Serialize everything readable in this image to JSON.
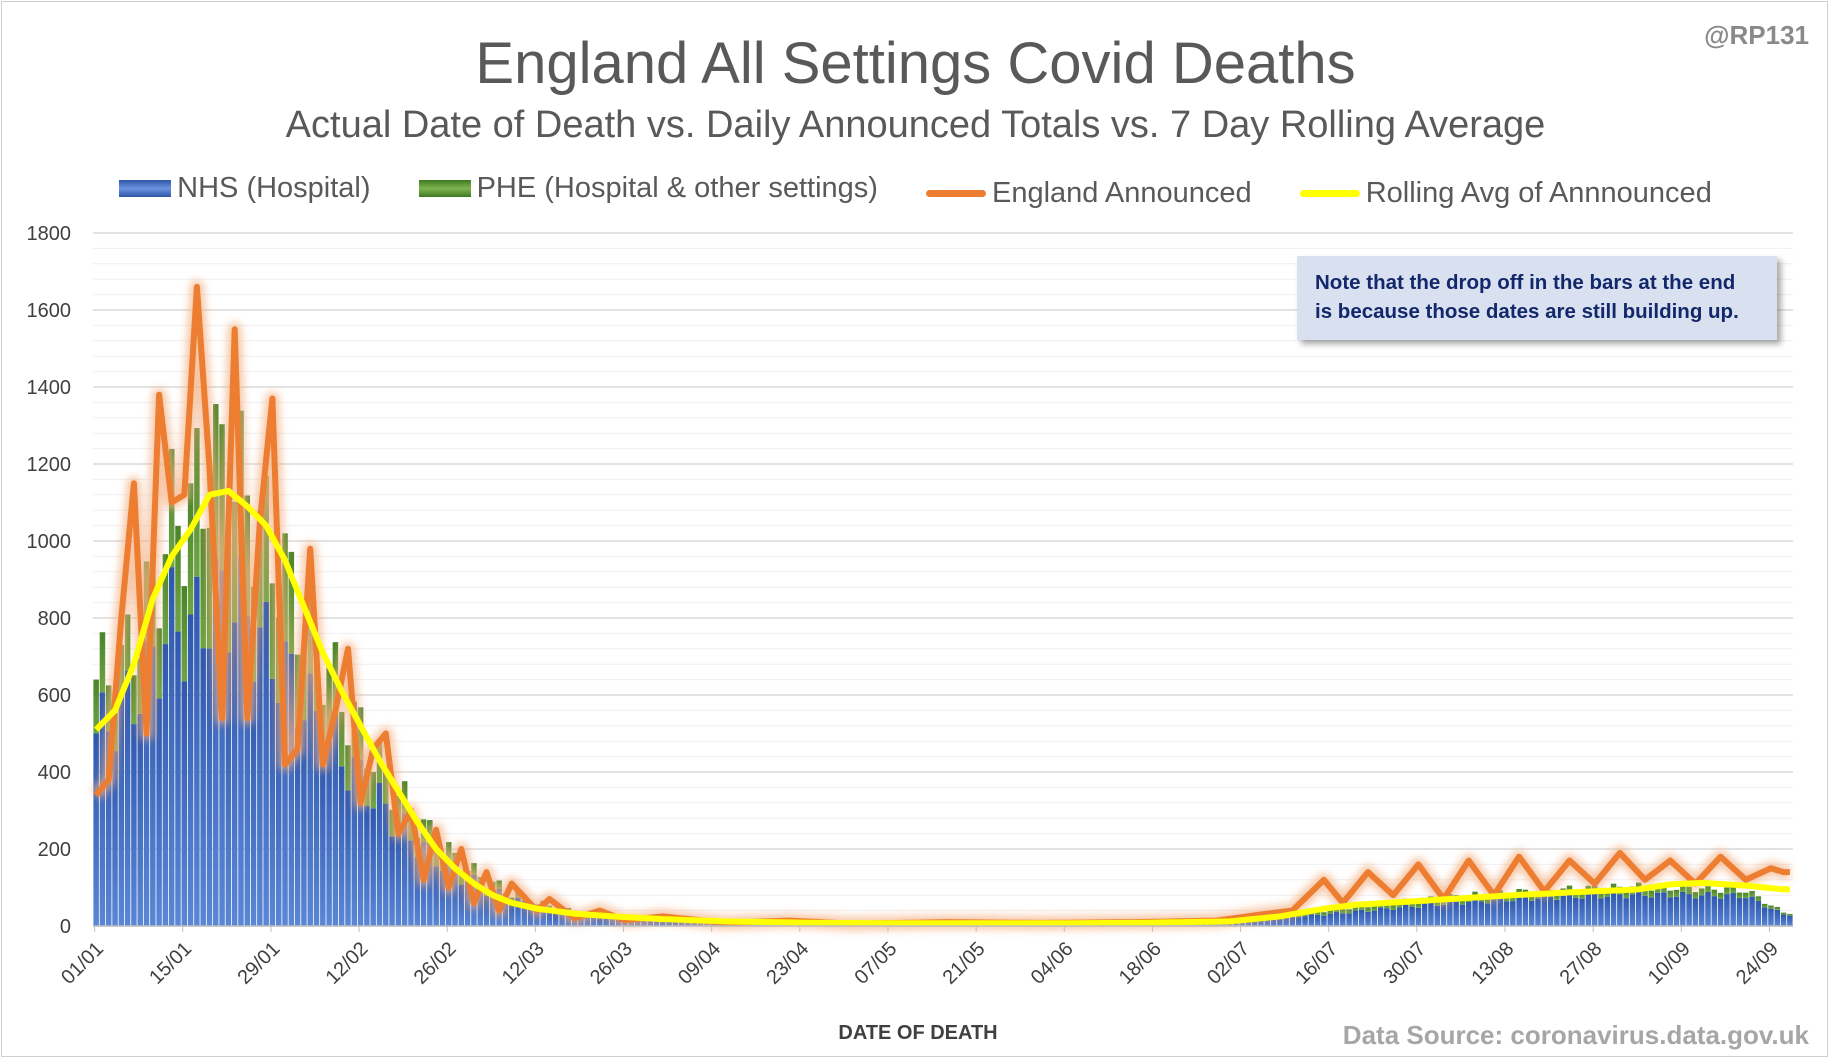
{
  "credit": "@RP131",
  "source": "Data Source: coronavirus.data.gov.uk",
  "note": {
    "line1": "Note that the drop off in the bars at the end",
    "line2": "is because those dates are still building up."
  },
  "legend": [
    {
      "label": "NHS (Hospital)",
      "kind": "bar",
      "color": "#3f6bbf"
    },
    {
      "label": "PHE (Hospital & other settings)",
      "kind": "bar",
      "color": "#5f9436"
    },
    {
      "label": "England Announced",
      "kind": "line",
      "color": "#ed7d31"
    },
    {
      "label": "Rolling Avg of Annnounced",
      "kind": "line",
      "color": "#ffff00"
    }
  ],
  "chart_data": {
    "type": "bar",
    "title": "England All Settings Covid Deaths",
    "subtitle": "Actual Date of Death vs. Daily Announced Totals vs. 7 Day Rolling Average",
    "xlabel": "DATE OF DEATH",
    "ylabel": "",
    "ylim": [
      0,
      1800
    ],
    "yticks": [
      0,
      200,
      400,
      600,
      800,
      1000,
      1200,
      1400,
      1600,
      1800
    ],
    "grid": true,
    "legend_position": "top",
    "x_start": "01/01",
    "x_tick_labels": [
      "01/01",
      "15/01",
      "29/01",
      "12/02",
      "26/02",
      "12/03",
      "26/03",
      "09/04",
      "23/04",
      "07/05",
      "21/05",
      "04/06",
      "18/06",
      "02/07",
      "16/07",
      "30/07",
      "13/08",
      "27/08",
      "10/09",
      "24/09"
    ],
    "keyframes_note": "approximate values read at sampled days (day index from 01/01)",
    "series": [
      {
        "name": "NHS (Hospital)",
        "stacked": true,
        "color": "#3f6bbf",
        "points": [
          [
            0,
            500
          ],
          [
            4,
            560
          ],
          [
            8,
            640
          ],
          [
            12,
            790
          ],
          [
            15,
            760
          ],
          [
            18,
            830
          ],
          [
            21,
            850
          ],
          [
            24,
            800
          ],
          [
            27,
            720
          ],
          [
            30,
            660
          ],
          [
            33,
            580
          ],
          [
            36,
            520
          ],
          [
            39,
            440
          ],
          [
            42,
            380
          ],
          [
            46,
            300
          ],
          [
            50,
            230
          ],
          [
            54,
            175
          ],
          [
            58,
            130
          ],
          [
            62,
            95
          ],
          [
            66,
            70
          ],
          [
            70,
            48
          ],
          [
            76,
            28
          ],
          [
            84,
            16
          ],
          [
            100,
            8
          ],
          [
            120,
            4
          ],
          [
            150,
            3
          ],
          [
            170,
            6
          ],
          [
            183,
            15
          ],
          [
            195,
            30
          ],
          [
            205,
            45
          ],
          [
            215,
            60
          ],
          [
            230,
            75
          ],
          [
            245,
            82
          ],
          [
            255,
            80
          ],
          [
            262,
            78
          ],
          [
            268,
            30
          ]
        ]
      },
      {
        "name": "PHE (Hospital & other settings)",
        "stacked": true,
        "color": "#5f9436",
        "points": [
          [
            0,
            140
          ],
          [
            4,
            110
          ],
          [
            8,
            180
          ],
          [
            12,
            260
          ],
          [
            15,
            320
          ],
          [
            18,
            360
          ],
          [
            21,
            340
          ],
          [
            24,
            310
          ],
          [
            27,
            280
          ],
          [
            30,
            250
          ],
          [
            33,
            210
          ],
          [
            36,
            180
          ],
          [
            39,
            150
          ],
          [
            42,
            120
          ],
          [
            46,
            90
          ],
          [
            50,
            65
          ],
          [
            54,
            45
          ],
          [
            58,
            30
          ],
          [
            62,
            22
          ],
          [
            66,
            16
          ],
          [
            70,
            12
          ],
          [
            76,
            8
          ],
          [
            84,
            6
          ],
          [
            100,
            3
          ],
          [
            120,
            2
          ],
          [
            150,
            1
          ],
          [
            170,
            3
          ],
          [
            183,
            6
          ],
          [
            195,
            10
          ],
          [
            205,
            14
          ],
          [
            215,
            16
          ],
          [
            230,
            18
          ],
          [
            245,
            20
          ],
          [
            255,
            18
          ],
          [
            262,
            15
          ],
          [
            268,
            5
          ]
        ]
      },
      {
        "name": "England Announced",
        "type": "line",
        "color": "#ed7d31",
        "points": [
          [
            0,
            340
          ],
          [
            2,
            380
          ],
          [
            4,
            800
          ],
          [
            6,
            1150
          ],
          [
            8,
            500
          ],
          [
            10,
            1380
          ],
          [
            12,
            1100
          ],
          [
            14,
            1120
          ],
          [
            16,
            1660
          ],
          [
            18,
            1190
          ],
          [
            20,
            540
          ],
          [
            22,
            1550
          ],
          [
            24,
            540
          ],
          [
            26,
            1050
          ],
          [
            28,
            1370
          ],
          [
            30,
            420
          ],
          [
            32,
            460
          ],
          [
            34,
            980
          ],
          [
            36,
            420
          ],
          [
            38,
            560
          ],
          [
            40,
            720
          ],
          [
            42,
            320
          ],
          [
            44,
            460
          ],
          [
            46,
            500
          ],
          [
            48,
            240
          ],
          [
            50,
            300
          ],
          [
            52,
            120
          ],
          [
            54,
            250
          ],
          [
            56,
            100
          ],
          [
            58,
            200
          ],
          [
            60,
            60
          ],
          [
            62,
            140
          ],
          [
            64,
            40
          ],
          [
            66,
            110
          ],
          [
            70,
            40
          ],
          [
            72,
            70
          ],
          [
            76,
            20
          ],
          [
            80,
            40
          ],
          [
            84,
            15
          ],
          [
            90,
            25
          ],
          [
            100,
            8
          ],
          [
            110,
            14
          ],
          [
            120,
            6
          ],
          [
            135,
            10
          ],
          [
            150,
            8
          ],
          [
            165,
            10
          ],
          [
            178,
            14
          ],
          [
            185,
            30
          ],
          [
            190,
            40
          ],
          [
            195,
            120
          ],
          [
            198,
            60
          ],
          [
            202,
            140
          ],
          [
            206,
            80
          ],
          [
            210,
            160
          ],
          [
            214,
            70
          ],
          [
            218,
            170
          ],
          [
            222,
            80
          ],
          [
            226,
            180
          ],
          [
            230,
            90
          ],
          [
            234,
            170
          ],
          [
            238,
            110
          ],
          [
            242,
            190
          ],
          [
            246,
            120
          ],
          [
            250,
            170
          ],
          [
            254,
            110
          ],
          [
            258,
            180
          ],
          [
            262,
            120
          ],
          [
            266,
            150
          ],
          [
            268,
            140
          ]
        ]
      },
      {
        "name": "Rolling Avg of Annnounced",
        "type": "line",
        "color": "#ffff00",
        "points": [
          [
            0,
            510
          ],
          [
            3,
            560
          ],
          [
            6,
            680
          ],
          [
            9,
            850
          ],
          [
            12,
            960
          ],
          [
            15,
            1030
          ],
          [
            18,
            1120
          ],
          [
            21,
            1130
          ],
          [
            24,
            1090
          ],
          [
            27,
            1040
          ],
          [
            30,
            950
          ],
          [
            33,
            830
          ],
          [
            36,
            710
          ],
          [
            39,
            610
          ],
          [
            42,
            520
          ],
          [
            45,
            430
          ],
          [
            48,
            350
          ],
          [
            51,
            270
          ],
          [
            54,
            200
          ],
          [
            57,
            150
          ],
          [
            60,
            110
          ],
          [
            63,
            80
          ],
          [
            66,
            60
          ],
          [
            70,
            45
          ],
          [
            76,
            32
          ],
          [
            82,
            25
          ],
          [
            90,
            18
          ],
          [
            100,
            12
          ],
          [
            115,
            8
          ],
          [
            130,
            7
          ],
          [
            150,
            7
          ],
          [
            165,
            8
          ],
          [
            180,
            12
          ],
          [
            188,
            25
          ],
          [
            195,
            45
          ],
          [
            200,
            55
          ],
          [
            207,
            62
          ],
          [
            215,
            70
          ],
          [
            225,
            80
          ],
          [
            235,
            88
          ],
          [
            245,
            95
          ],
          [
            250,
            108
          ],
          [
            255,
            112
          ],
          [
            262,
            105
          ],
          [
            268,
            95
          ]
        ]
      }
    ]
  }
}
